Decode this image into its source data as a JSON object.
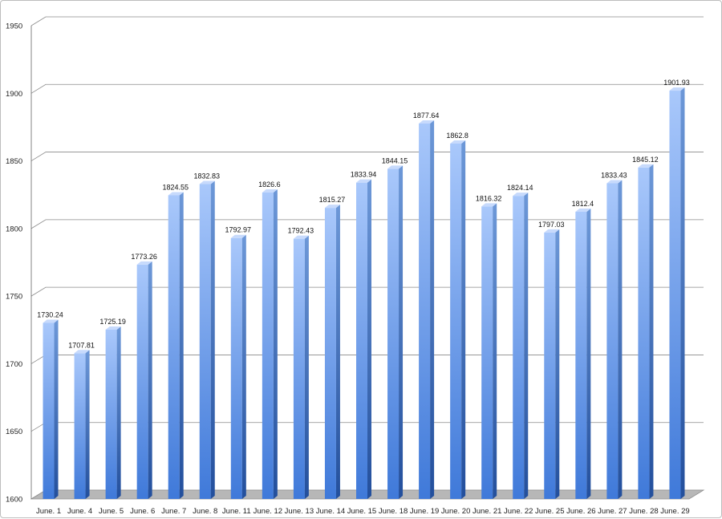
{
  "chart_data": {
    "type": "bar",
    "categories": [
      "June. 1",
      "June. 4",
      "June. 5",
      "June. 6",
      "June. 7",
      "June. 8",
      "June. 11",
      "June. 12",
      "June. 13",
      "June. 14",
      "June. 15",
      "June. 18",
      "June. 19",
      "June. 20",
      "June. 21",
      "June. 22",
      "June. 25",
      "June. 26",
      "June. 27",
      "June. 28",
      "June. 29"
    ],
    "values": [
      1730.24,
      1707.81,
      1725.19,
      1773.26,
      1824.55,
      1832.83,
      1792.97,
      1826.6,
      1792.43,
      1815.27,
      1833.94,
      1844.15,
      1877.64,
      1862.8,
      1816.32,
      1824.14,
      1797.03,
      1812.4,
      1833.43,
      1845.12,
      1901.93
    ],
    "value_labels": [
      "1730.24",
      "1707.81",
      "1725.19",
      "1773.26",
      "1824.55",
      "1832.83",
      "1792.97",
      "1826.6",
      "1792.43",
      "1815.27",
      "1833.94",
      "1844.15",
      "1877.64",
      "1862.8",
      "1816.32",
      "1824.14",
      "1797.03",
      "1812.4",
      "1833.43",
      "1845.12",
      "1901.93"
    ],
    "yticks": [
      "1600",
      "1650",
      "1700",
      "1750",
      "1800",
      "1850",
      "1900",
      "1950"
    ],
    "ylim": [
      1600,
      1950
    ],
    "grid": true,
    "bar_color": "#5f95e8",
    "title": "",
    "xlabel": "",
    "ylabel": ""
  }
}
